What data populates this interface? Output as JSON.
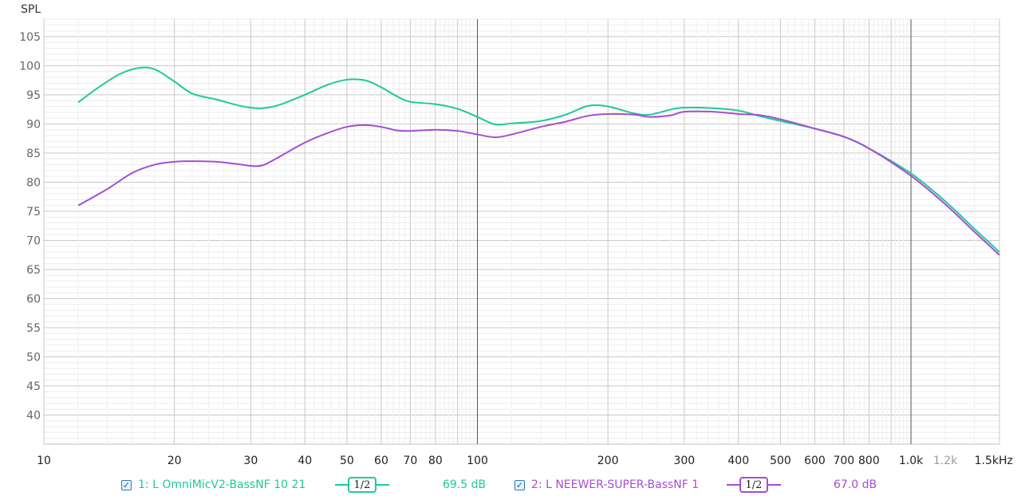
{
  "chart_data": {
    "type": "line",
    "ylabel": "SPL",
    "x_scale": "log",
    "xlim": [
      10,
      1600
    ],
    "ylim": [
      35,
      108
    ],
    "y_ticks": [
      40,
      45,
      50,
      55,
      60,
      65,
      70,
      75,
      80,
      85,
      90,
      95,
      100,
      105
    ],
    "x_ticks": [
      {
        "v": 10,
        "label": "10"
      },
      {
        "v": 20,
        "label": "20"
      },
      {
        "v": 30,
        "label": "30"
      },
      {
        "v": 40,
        "label": "40"
      },
      {
        "v": 50,
        "label": "50"
      },
      {
        "v": 60,
        "label": "60"
      },
      {
        "v": 70,
        "label": "70"
      },
      {
        "v": 80,
        "label": "80"
      },
      {
        "v": 100,
        "label": "100"
      },
      {
        "v": 200,
        "label": "200"
      },
      {
        "v": 300,
        "label": "300"
      },
      {
        "v": 400,
        "label": "400"
      },
      {
        "v": 500,
        "label": "500"
      },
      {
        "v": 600,
        "label": "600"
      },
      {
        "v": 700,
        "label": "700"
      },
      {
        "v": 800,
        "label": "800"
      },
      {
        "v": 1000,
        "label": "1.0k"
      },
      {
        "v": 1200,
        "label": "1.2k"
      },
      {
        "v": 1500,
        "label": "1.5kHz"
      }
    ],
    "grid": true,
    "series": [
      {
        "name": "1: L OmniMicV2-BassNF 10 21",
        "color": "#1ec99a",
        "smoothing": "1/2",
        "value_label": "69.5 dB",
        "x": [
          12,
          13.5,
          15,
          16.5,
          18,
          20,
          22,
          25,
          28,
          30,
          32,
          35,
          40,
          45,
          50,
          55,
          60,
          65,
          70,
          80,
          90,
          100,
          110,
          120,
          140,
          160,
          180,
          200,
          230,
          250,
          280,
          300,
          350,
          400,
          450,
          500,
          600,
          700,
          800,
          1000,
          1200,
          1400,
          1600
        ],
        "y": [
          93.7,
          96.5,
          98.6,
          99.6,
          99.4,
          97.3,
          95.2,
          94.2,
          93.2,
          92.8,
          92.7,
          93.3,
          95.0,
          96.7,
          97.6,
          97.5,
          96.3,
          94.8,
          93.8,
          93.4,
          92.6,
          91.2,
          89.9,
          90.1,
          90.5,
          91.6,
          93.1,
          93.0,
          91.8,
          91.6,
          92.5,
          92.8,
          92.7,
          92.3,
          91.3,
          90.5,
          89.2,
          87.8,
          85.8,
          81.5,
          76.7,
          72.0,
          68.0
        ]
      },
      {
        "name": "2: L NEEWER-SUPER-BassNF 1",
        "color": "#a54dd4",
        "smoothing": "1/2",
        "value_label": "67.0 dB",
        "x": [
          12,
          14,
          16,
          18,
          20,
          22,
          25,
          28,
          30,
          32,
          35,
          40,
          45,
          50,
          55,
          60,
          65,
          70,
          80,
          90,
          100,
          110,
          120,
          140,
          160,
          180,
          200,
          230,
          250,
          280,
          300,
          350,
          400,
          450,
          500,
          600,
          700,
          800,
          1000,
          1200,
          1400,
          1600
        ],
        "y": [
          76.0,
          78.8,
          81.6,
          83.0,
          83.5,
          83.6,
          83.5,
          83.1,
          82.8,
          82.9,
          84.4,
          86.8,
          88.4,
          89.5,
          89.8,
          89.5,
          88.9,
          88.8,
          89.0,
          88.8,
          88.2,
          87.7,
          88.2,
          89.5,
          90.4,
          91.4,
          91.7,
          91.6,
          91.2,
          91.5,
          92.1,
          92.1,
          91.7,
          91.5,
          90.8,
          89.2,
          87.8,
          85.8,
          81.1,
          76.2,
          71.5,
          67.5
        ]
      }
    ]
  },
  "legend": {
    "items": [
      {
        "checked_glyph": "✓",
        "label": "1: L OmniMicV2-BassNF 10 21",
        "fraction": "1/2",
        "value": "69.5 dB",
        "color": "#1ec99a"
      },
      {
        "checked_glyph": "✓",
        "label": "2: L NEEWER-SUPER-BassNF 1",
        "fraction": "1/2",
        "value": "67.0 dB",
        "color": "#a54dd4"
      }
    ]
  }
}
